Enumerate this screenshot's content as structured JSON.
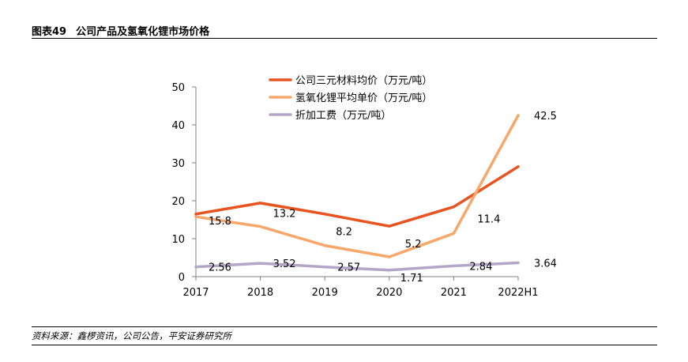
{
  "header": {
    "figure_number": "图表49",
    "title": "公司产品及氢氧化锂市场价格"
  },
  "footer": {
    "source": "资料来源：鑫椤资讯，公司公告，平安证券研究所"
  },
  "chart_data": {
    "type": "line",
    "categories": [
      "2017",
      "2018",
      "2019",
      "2020",
      "2021",
      "2022H1"
    ],
    "ylim": [
      0,
      50
    ],
    "yticks": [
      "0",
      "10",
      "20",
      "30",
      "40",
      "50"
    ],
    "grid": false,
    "legend_position": "top-right",
    "series": [
      {
        "name": "公司三元材料均价（万元/吨）",
        "color": "#E8531F",
        "values": [
          16.5,
          19.4,
          16.5,
          13.3,
          18.4,
          29.0
        ],
        "labels": [
          "",
          "",
          "",
          "",
          "",
          ""
        ]
      },
      {
        "name": "氢氧化锂平均单价（万元/吨）",
        "color": "#F6A86A",
        "values": [
          15.8,
          13.2,
          8.2,
          5.2,
          11.4,
          42.5
        ],
        "labels": [
          "15.8",
          "13.2",
          "8.2",
          "5.2",
          "11.4",
          "42.5"
        ]
      },
      {
        "name": "折加工费（万元/吨）",
        "color": "#B3A6C8",
        "values": [
          2.56,
          3.52,
          2.57,
          1.71,
          2.84,
          3.64
        ],
        "labels": [
          "2.56",
          "3.52",
          "2.57",
          "1.71",
          "2.84",
          "3.64"
        ]
      }
    ]
  }
}
